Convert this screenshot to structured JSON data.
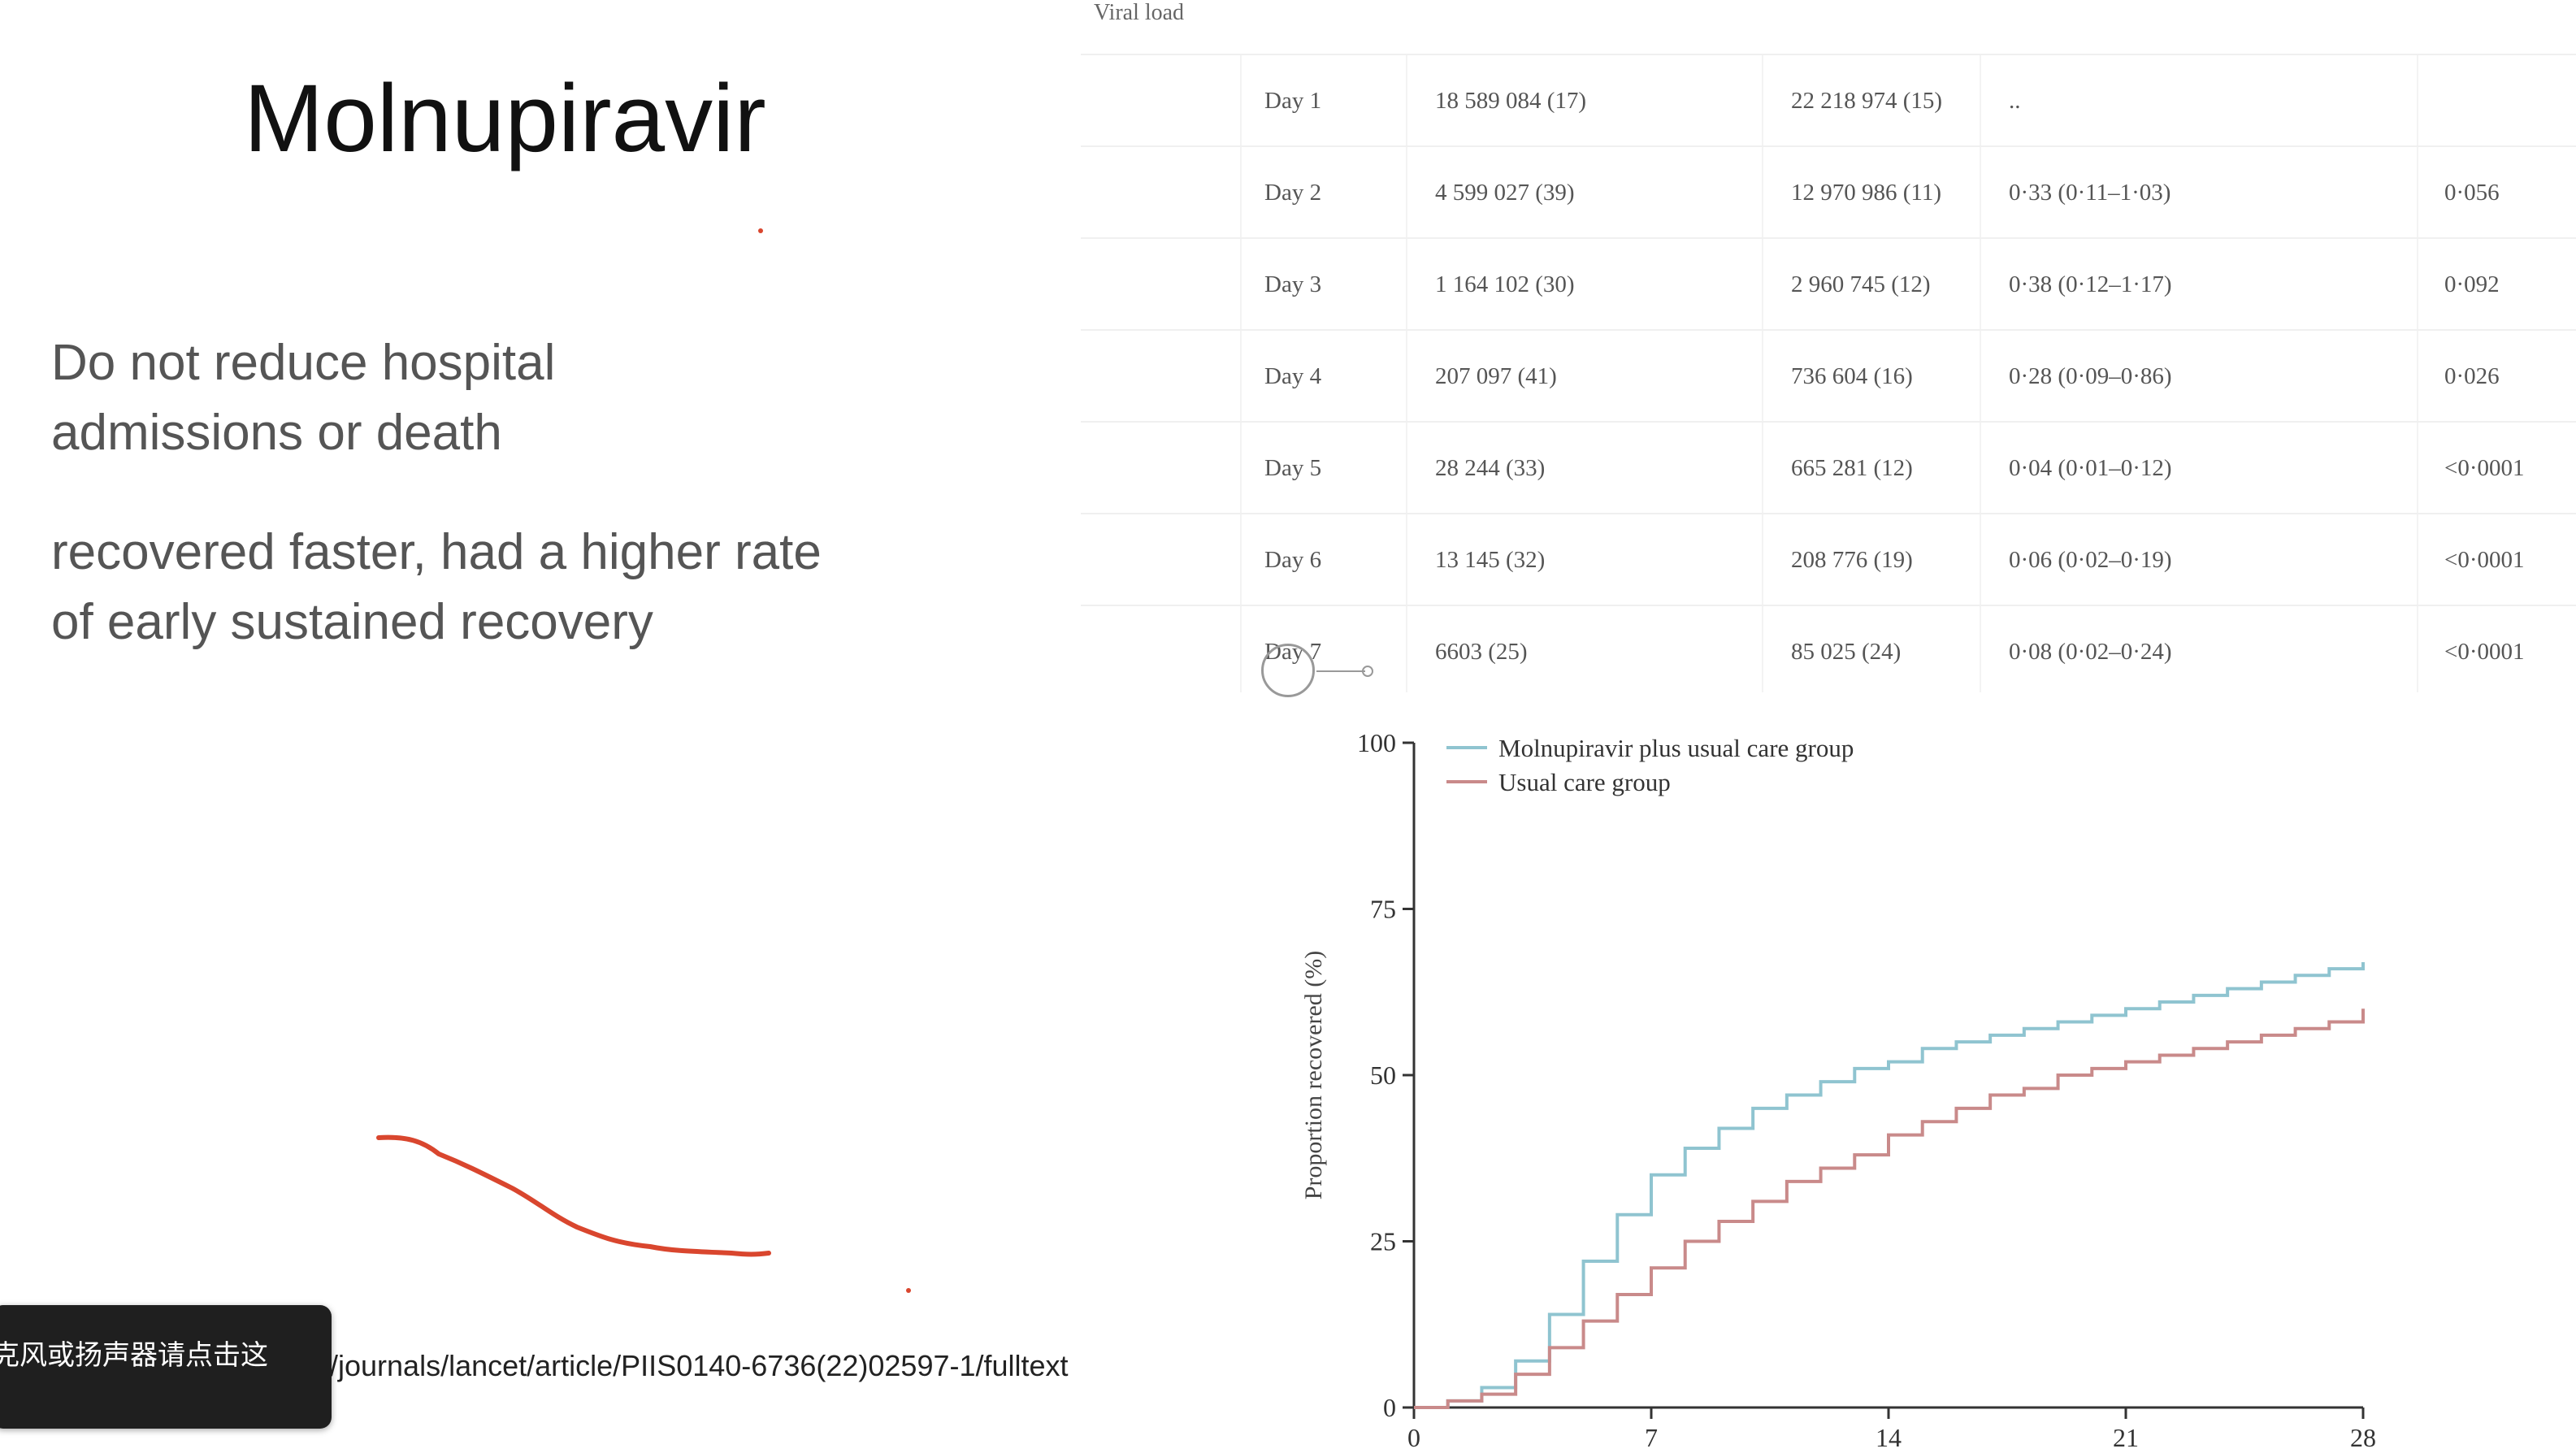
{
  "slide": {
    "title": "Molnupiravir",
    "bullets": [
      "Do not reduce hospital admissions or death",
      "recovered faster, had a higher rate of early sustained recovery"
    ],
    "url": "/journals/lancet/article/PIIS0140-6736(22)02597-1/fulltext"
  },
  "toast": {
    "text": "克风或扬声器请点击这"
  },
  "table": {
    "section_label": "Viral load",
    "rows": [
      {
        "day": "Day 1",
        "a": "18 589 084 (17)",
        "b": "22 218 974 (15)",
        "c": "..",
        "p": ""
      },
      {
        "day": "Day 2",
        "a": "4 599 027 (39)",
        "b": "12 970 986 (11)",
        "c": "0·33 (0·11–1·03)",
        "p": "0·056"
      },
      {
        "day": "Day 3",
        "a": "1 164 102 (30)",
        "b": "2 960 745 (12)",
        "c": "0·38 (0·12–1·17)",
        "p": "0·092"
      },
      {
        "day": "Day 4",
        "a": "207 097 (41)",
        "b": "736 604 (16)",
        "c": "0·28 (0·09–0·86)",
        "p": "0·026"
      },
      {
        "day": "Day 5",
        "a": "28 244 (33)",
        "b": "665 281 (12)",
        "c": "0·04 (0·01–0·12)",
        "p": "<0·0001"
      },
      {
        "day": "Day 6",
        "a": "13 145 (32)",
        "b": "208 776 (19)",
        "c": "0·06 (0·02–0·19)",
        "p": "<0·0001"
      },
      {
        "day": "Day 7",
        "a": "6603 (25)",
        "b": "85 025 (24)",
        "c": "0·08 (0·02–0·24)",
        "p": "<0·0001"
      }
    ]
  },
  "chart_data": {
    "type": "line",
    "title": "",
    "xlabel": "",
    "ylabel": "Proportion recovered (%)",
    "xlim": [
      0,
      28
    ],
    "ylim": [
      0,
      100
    ],
    "xticks": [
      0,
      7,
      14,
      21,
      28
    ],
    "yticks": [
      0,
      25,
      50,
      75,
      100
    ],
    "legend_position": "top-left",
    "series": [
      {
        "name": "Molnupiravir plus usual care group",
        "color": "#8fc4d0",
        "step": true,
        "x": [
          0,
          1,
          2,
          3,
          4,
          5,
          6,
          7,
          8,
          9,
          10,
          11,
          12,
          13,
          14,
          15,
          16,
          17,
          18,
          19,
          20,
          21,
          22,
          23,
          24,
          25,
          26,
          27,
          28
        ],
        "y": [
          0,
          1,
          3,
          7,
          14,
          22,
          29,
          35,
          39,
          42,
          45,
          47,
          49,
          51,
          52,
          54,
          55,
          56,
          57,
          58,
          59,
          60,
          61,
          62,
          63,
          64,
          65,
          66,
          67
        ]
      },
      {
        "name": "Usual care group",
        "color": "#c98a8a",
        "step": true,
        "x": [
          0,
          1,
          2,
          3,
          4,
          5,
          6,
          7,
          8,
          9,
          10,
          11,
          12,
          13,
          14,
          15,
          16,
          17,
          18,
          19,
          20,
          21,
          22,
          23,
          24,
          25,
          26,
          27,
          28
        ],
        "y": [
          0,
          1,
          2,
          5,
          9,
          13,
          17,
          21,
          25,
          28,
          31,
          34,
          36,
          38,
          41,
          43,
          45,
          47,
          48,
          50,
          51,
          52,
          53,
          54,
          55,
          56,
          57,
          58,
          60
        ]
      }
    ]
  },
  "annotation": {
    "color": "#d9462e"
  }
}
